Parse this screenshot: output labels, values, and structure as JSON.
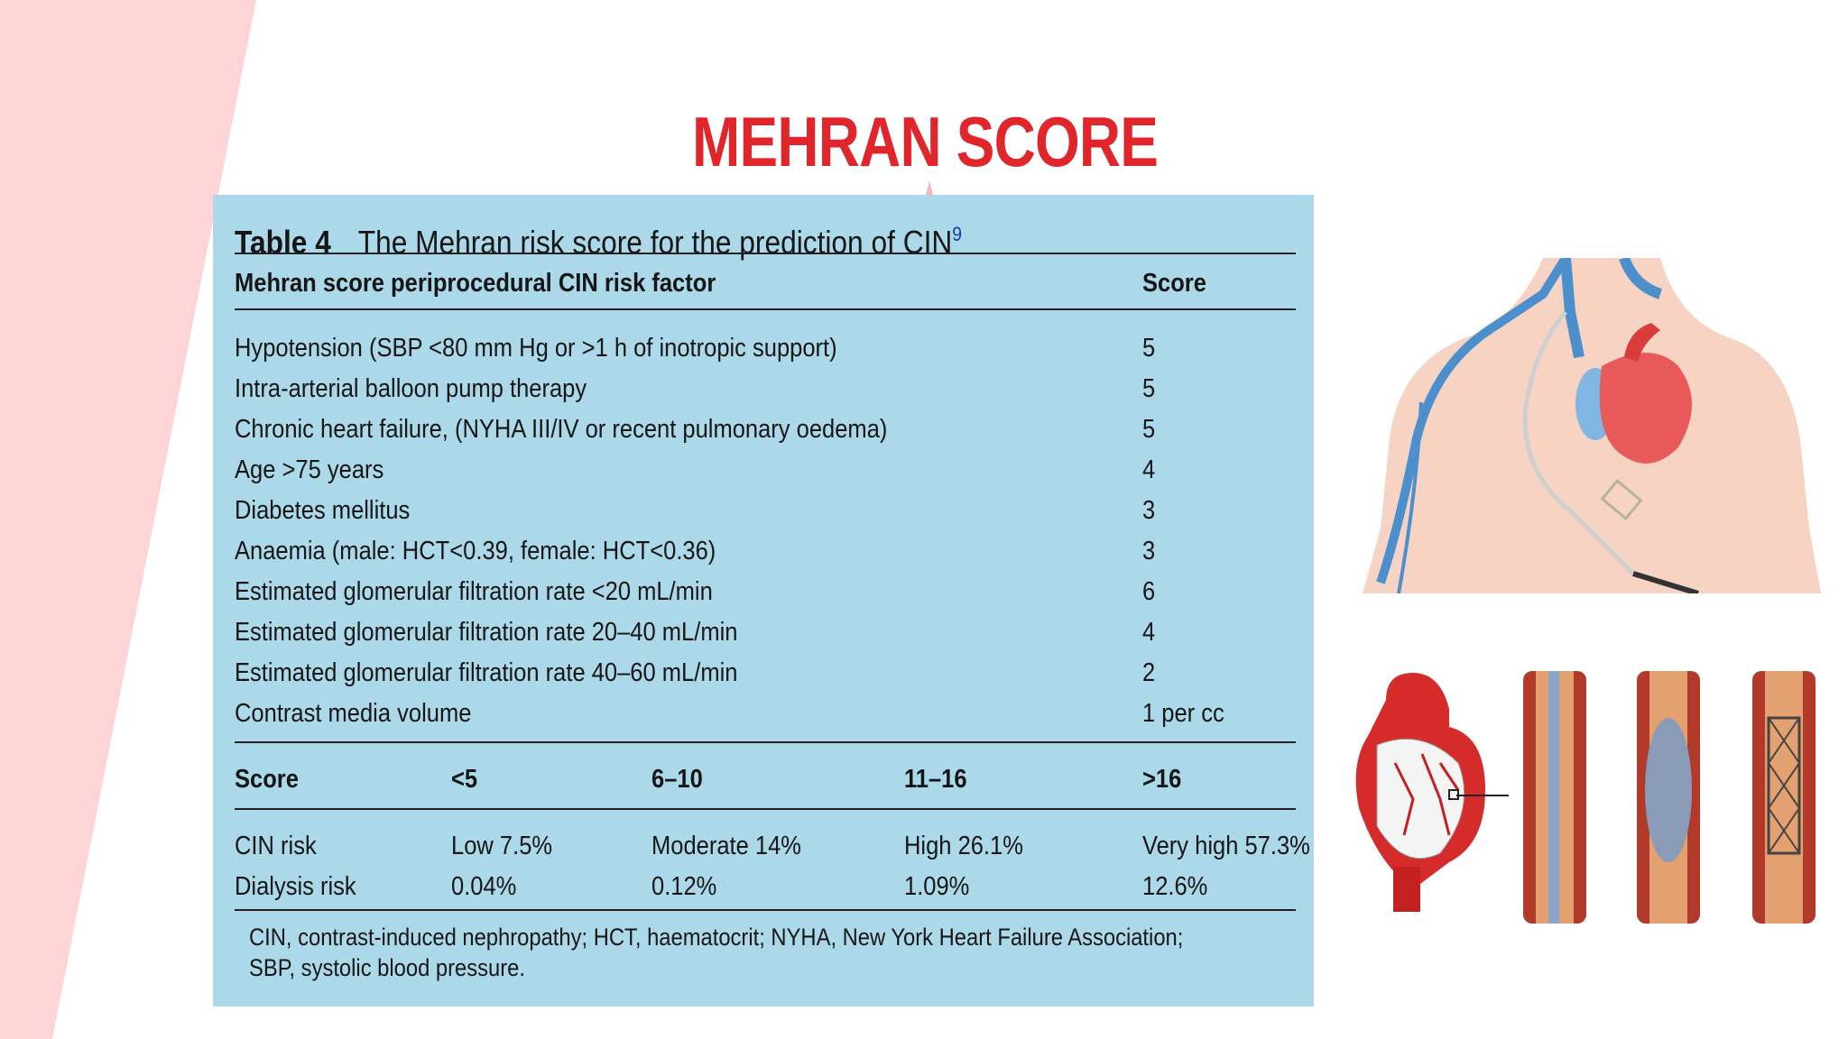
{
  "slide": {
    "title": "MEHRAN SCORE"
  },
  "table": {
    "number": "Table 4",
    "caption": "The Mehran risk score for the prediction of CIN",
    "caption_ref": "9",
    "header": {
      "factor": "Mehran score periprocedural CIN risk factor",
      "score": "Score"
    },
    "rows": [
      {
        "factor": "Hypotension (SBP <80 mm Hg or >1 h of inotropic support)",
        "score": "5"
      },
      {
        "factor": "Intra-arterial balloon pump therapy",
        "score": "5"
      },
      {
        "factor": "Chronic heart failure, (NYHA III/IV or recent pulmonary oedema)",
        "score": "5"
      },
      {
        "factor": "Age >75 years",
        "score": "4"
      },
      {
        "factor": "Diabetes mellitus",
        "score": "3"
      },
      {
        "factor": "Anaemia (male: HCT<0.39, female: HCT<0.36)",
        "score": "3"
      },
      {
        "factor": "Estimated glomerular filtration rate <20 mL/min",
        "score": "6"
      },
      {
        "factor": "Estimated glomerular filtration rate 20–40 mL/min",
        "score": "4"
      },
      {
        "factor": "Estimated glomerular filtration rate 40–60 mL/min",
        "score": "2"
      },
      {
        "factor": "Contrast media volume",
        "score": "1 per cc"
      }
    ],
    "risk_header": [
      "Score",
      "<5",
      "6–10",
      "11–16",
      ">16"
    ],
    "risk_rows": [
      [
        "CIN risk",
        "Low 7.5%",
        "Moderate 14%",
        "High 26.1%",
        "Very high 57.3%"
      ],
      [
        "Dialysis risk",
        "0.04%",
        "0.12%",
        "1.09%",
        "12.6%"
      ]
    ],
    "footnote_lines": [
      "CIN, contrast-induced nephropathy; HCT, haematocrit; NYHA, New York Heart Failure Association;",
      "SBP, systolic blood pressure."
    ]
  },
  "colors": {
    "title": "#e0262a",
    "table_bg": "#acd9e9",
    "side_stripe": "#fdd5d6"
  },
  "illustrations": [
    "chest-catheter-illustration",
    "coronary-stent-illustration"
  ]
}
